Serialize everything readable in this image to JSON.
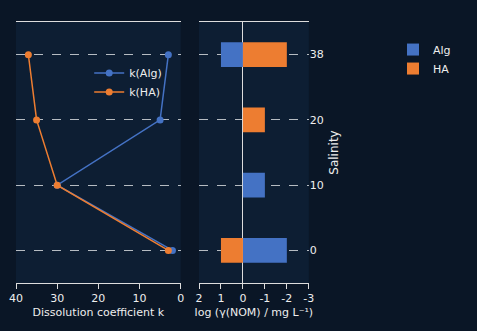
{
  "chart_data": [
    {
      "type": "line",
      "orientation": "horizontal",
      "xlabel": "Dissolution coefficient k",
      "categories": [
        "0",
        "10",
        "20",
        "38"
      ],
      "series": [
        {
          "name": "k(Alg)",
          "color": "#4472c4",
          "values": [
            2,
            30,
            5,
            3
          ]
        },
        {
          "name": "k(HA)",
          "color": "#ed7d31",
          "values": [
            3,
            30,
            35,
            37
          ]
        }
      ],
      "xlim": [
        40,
        0
      ],
      "xticks": [
        40,
        30,
        20,
        10,
        0
      ],
      "marker": "circle",
      "grid": true,
      "legend": "top"
    },
    {
      "type": "bar",
      "orientation": "horizontal",
      "xlabel": "log (γ(NOM) / mg L⁻¹)",
      "ylabel": "Salinity",
      "categories": [
        "0",
        "10",
        "20",
        "38"
      ],
      "series": [
        {
          "name": "Alg",
          "color": "#4472c4",
          "values": [
            -2,
            -1,
            null,
            1
          ]
        },
        {
          "name": "HA",
          "color": "#ed7d31",
          "values": [
            1,
            null,
            -1,
            -2
          ]
        }
      ],
      "xlim": [
        2,
        -3
      ],
      "xticks": [
        2,
        1,
        0,
        -1,
        -2,
        -3
      ],
      "grid": true,
      "legend": "right"
    }
  ]
}
